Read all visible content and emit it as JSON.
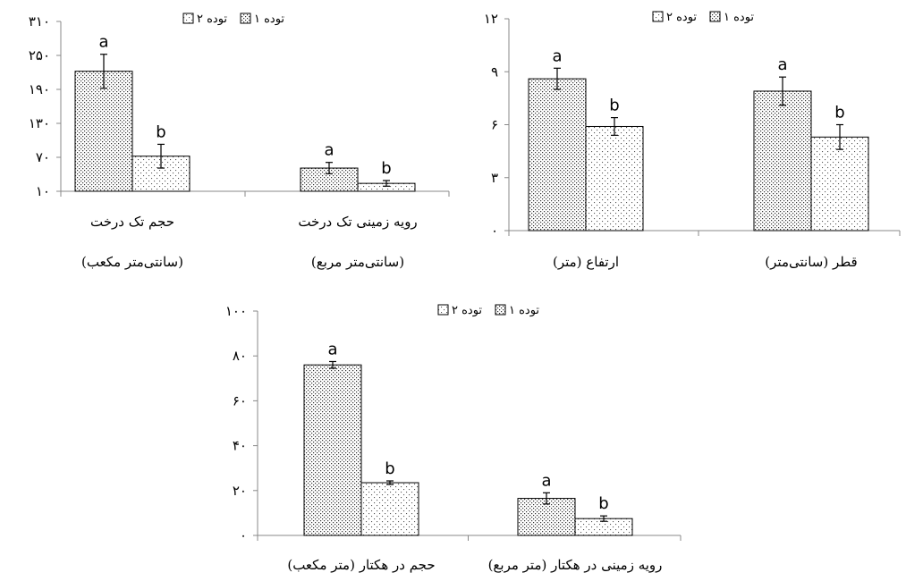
{
  "legend": {
    "series1": "توده ۱",
    "series2": "توده ۲"
  },
  "colors": {
    "series1_pattern": "#333333",
    "series2_pattern": "#555555",
    "axis": "#888888",
    "bar_outline": "#000000"
  },
  "chart_data": [
    {
      "type": "bar",
      "categories": [
        "حجم تک درخت",
        "رویه زمینی تک درخت"
      ],
      "category_units": [
        "(سانتی‌متر مکعب)",
        "(سانتی‌متر مربع)"
      ],
      "tick_values": [
        10,
        70,
        130,
        190,
        250,
        310
      ],
      "tick_labels": [
        "۱۰",
        "۷۰",
        "۱۳۰",
        "۱۹۰",
        "۲۵۰",
        "۳۱۰"
      ],
      "ylim": [
        10,
        310
      ],
      "series": [
        {
          "name": "توده ۱",
          "values": [
            222,
            51
          ],
          "errors": [
            30,
            10
          ],
          "letters": [
            "a",
            "a"
          ]
        },
        {
          "name": "توده ۲",
          "values": [
            72,
            24
          ],
          "errors": [
            21,
            5
          ],
          "letters": [
            "b",
            "b"
          ]
        }
      ],
      "legend_placement": "top"
    },
    {
      "type": "bar",
      "categories": [
        "ارتفاع (متر)",
        "قطر (سانتی‌متر)"
      ],
      "tick_values": [
        0,
        3,
        6,
        9,
        12
      ],
      "tick_labels": [
        "۰",
        "۳",
        "۶",
        "۹",
        "۱۲"
      ],
      "ylim": [
        0,
        12
      ],
      "series": [
        {
          "name": "توده ۱",
          "values": [
            8.6,
            7.9
          ],
          "errors": [
            0.6,
            0.8
          ],
          "letters": [
            "a",
            "a"
          ]
        },
        {
          "name": "توده ۲",
          "values": [
            5.9,
            5.3
          ],
          "errors": [
            0.5,
            0.7
          ],
          "letters": [
            "b",
            "b"
          ]
        }
      ],
      "legend_placement": "top"
    },
    {
      "type": "bar",
      "categories": [
        "حجم در هکتار (متر مکعب)",
        "رویه زمینی در هکتار (متر مربع)"
      ],
      "tick_values": [
        0,
        20,
        40,
        60,
        80,
        100
      ],
      "tick_labels": [
        "۰",
        "۲۰",
        "۴۰",
        "۶۰",
        "۸۰",
        "۱۰۰"
      ],
      "ylim": [
        0,
        100
      ],
      "series": [
        {
          "name": "توده ۱",
          "values": [
            76,
            16.5
          ],
          "errors": [
            1.5,
            2.5
          ],
          "letters": [
            "a",
            "a"
          ]
        },
        {
          "name": "توده ۲",
          "values": [
            23.5,
            7.5
          ],
          "errors": [
            0.8,
            1.2
          ],
          "letters": [
            "b",
            "b"
          ]
        }
      ],
      "legend_placement": "top"
    }
  ]
}
